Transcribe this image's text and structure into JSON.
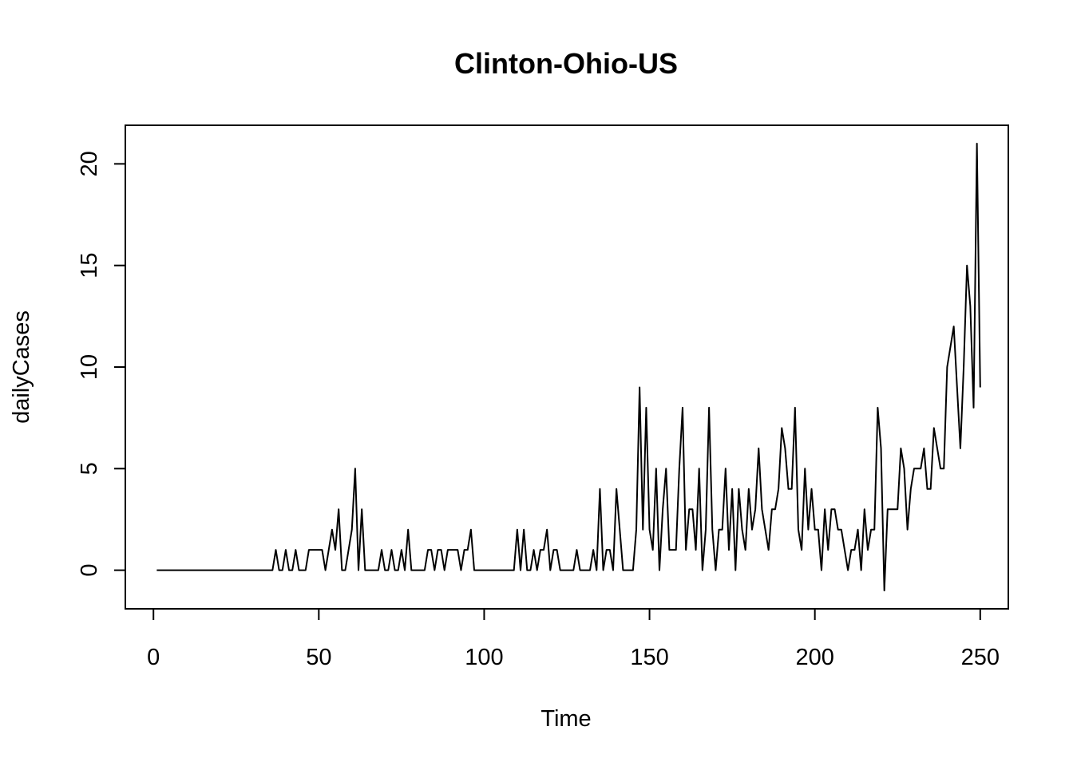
{
  "chart_data": {
    "type": "line",
    "title": "Clinton-Ohio-US",
    "xlabel": "Time",
    "ylabel": "dailyCases",
    "xlim": [
      -8.5,
      258.5
    ],
    "ylim": [
      -1.9,
      21.9
    ],
    "x_ticks": [
      0,
      50,
      100,
      150,
      200,
      250
    ],
    "y_ticks": [
      0,
      5,
      10,
      15,
      20
    ],
    "grid": false,
    "legend": "none",
    "line_color": "#000000",
    "series": [
      {
        "x_start": 1,
        "values": [
          0,
          0,
          0,
          0,
          0,
          0,
          0,
          0,
          0,
          0,
          0,
          0,
          0,
          0,
          0,
          0,
          0,
          0,
          0,
          0,
          0,
          0,
          0,
          0,
          0,
          0,
          0,
          0,
          0,
          0,
          0,
          0,
          0,
          0,
          0,
          0,
          1,
          0,
          0,
          1,
          0,
          0,
          1,
          0,
          0,
          0,
          1,
          1,
          1,
          1,
          1,
          0,
          1,
          2,
          1,
          3,
          0,
          0,
          1,
          2,
          5,
          0,
          3,
          0,
          0,
          0,
          0,
          0,
          1,
          0,
          0,
          1,
          0,
          0,
          1,
          0,
          2,
          0,
          0,
          0,
          0,
          0,
          1,
          1,
          0,
          1,
          1,
          0,
          1,
          1,
          1,
          1,
          0,
          1,
          1,
          2,
          0,
          0,
          0,
          0,
          0,
          0,
          0,
          0,
          0,
          0,
          0,
          0,
          0,
          2,
          0,
          2,
          0,
          0,
          1,
          0,
          1,
          1,
          2,
          0,
          1,
          1,
          0,
          0,
          0,
          0,
          0,
          1,
          0,
          0,
          0,
          0,
          1,
          0,
          4,
          0,
          1,
          1,
          0,
          4,
          2,
          0,
          0,
          0,
          0,
          2,
          9,
          2,
          8,
          2,
          1,
          5,
          0,
          3,
          5,
          1,
          1,
          1,
          5,
          8,
          1,
          3,
          3,
          1,
          5,
          0,
          2,
          8,
          2,
          0,
          2,
          2,
          5,
          1,
          4,
          0,
          4,
          2,
          1,
          4,
          2,
          3,
          6,
          3,
          2,
          1,
          3,
          3,
          4,
          7,
          6,
          4,
          4,
          8,
          2,
          1,
          5,
          2,
          4,
          2,
          2,
          0,
          3,
          1,
          3,
          3,
          2,
          2,
          1,
          0,
          1,
          1,
          2,
          0,
          3,
          1,
          2,
          2,
          8,
          6,
          -1,
          3,
          3,
          3,
          3,
          6,
          5,
          2,
          4,
          5,
          5,
          5,
          6,
          4,
          4,
          7,
          6,
          5,
          5,
          10,
          11,
          12,
          9,
          6,
          10,
          15,
          13,
          8,
          21,
          9
        ]
      }
    ]
  }
}
